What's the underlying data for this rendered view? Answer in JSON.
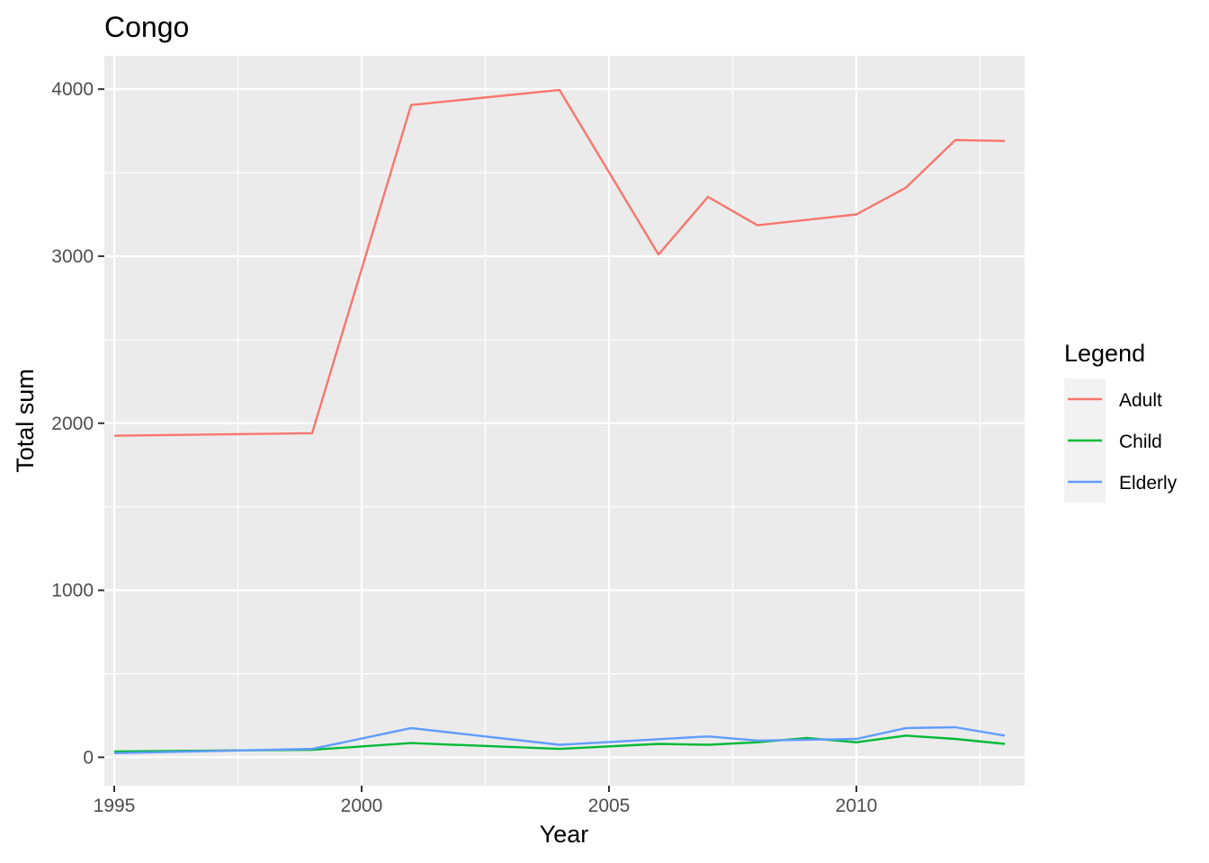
{
  "chart_data": {
    "type": "line",
    "title": "Congo",
    "xlabel": "Year",
    "ylabel": "Total sum",
    "xlim": [
      1994.8,
      2013.4
    ],
    "ylim": [
      -170,
      4200
    ],
    "x_ticks": [
      1995,
      2000,
      2005,
      2010
    ],
    "x_minor_ticks": [
      1997.5,
      2002.5,
      2007.5,
      2012.5
    ],
    "y_ticks": [
      0,
      1000,
      2000,
      3000,
      4000
    ],
    "y_minor_ticks": [
      500,
      1500,
      2500,
      3500
    ],
    "x_tick_labels": [
      "1995",
      "2000",
      "2005",
      "2010"
    ],
    "y_tick_labels": [
      "0",
      "1000",
      "2000",
      "3000",
      "4000"
    ],
    "grid": true,
    "legend": {
      "title": "Legend",
      "placement": "right",
      "entries": [
        "Adult",
        "Child",
        "Elderly"
      ]
    },
    "series": [
      {
        "name": "Adult",
        "color": "#F8766D",
        "x": [
          1995,
          1999,
          2001,
          2004,
          2006,
          2007,
          2008,
          2010,
          2011,
          2012,
          2013
        ],
        "y": [
          1925,
          1940,
          3905,
          3995,
          3010,
          3355,
          3185,
          3250,
          3410,
          3695,
          3690
        ]
      },
      {
        "name": "Child",
        "color": "#00BA38",
        "x": [
          1995,
          1999,
          2001,
          2004,
          2006,
          2007,
          2008,
          2009,
          2010,
          2011,
          2012,
          2013
        ],
        "y": [
          35,
          45,
          85,
          50,
          80,
          75,
          90,
          115,
          90,
          130,
          110,
          80
        ]
      },
      {
        "name": "Elderly",
        "color": "#619CFF",
        "x": [
          1995,
          1999,
          2001,
          2004,
          2007,
          2008,
          2010,
          2011,
          2012,
          2013
        ],
        "y": [
          25,
          50,
          175,
          75,
          125,
          100,
          110,
          175,
          180,
          130
        ]
      }
    ]
  }
}
